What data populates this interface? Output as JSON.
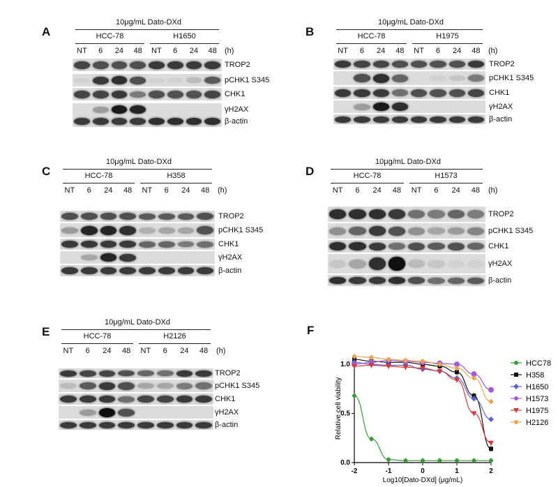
{
  "panels": [
    {
      "label": "A",
      "treatment": "10μg/mL Dato-DXd",
      "line1": "HCC-78",
      "line2": "H1650",
      "timepoints": [
        "NT",
        "6",
        "24",
        "48",
        "NT",
        "6",
        "24",
        "48"
      ],
      "unit": "(h)",
      "proteins": [
        "TROP2",
        "pCHK1 S345",
        "CHK1",
        "γH2AX",
        "β-actin"
      ]
    },
    {
      "label": "B",
      "treatment": "10μg/mL Dato-DXd",
      "line1": "HCC-78",
      "line2": "H1975",
      "timepoints": [
        "NT",
        "6",
        "24",
        "48",
        "NT",
        "6",
        "24",
        "48"
      ],
      "unit": "(h)",
      "proteins": [
        "TROP2",
        "pCHK1 S345",
        "CHK1",
        "γH2AX",
        "β-actin"
      ]
    },
    {
      "label": "C",
      "treatment": "10μg/mL Dato-DXd",
      "line1": "HCC-78",
      "line2": "H358",
      "timepoints": [
        "NT",
        "6",
        "24",
        "48",
        "NT",
        "6",
        "24",
        "48"
      ],
      "unit": "(h)",
      "proteins": [
        "TROP2",
        "pCHK1 S345",
        "CHK1",
        "γH2AX",
        "β-actin"
      ]
    },
    {
      "label": "D",
      "treatment": "10μg/mL Dato-DXd",
      "line1": "HCC-78",
      "line2": "H1573",
      "timepoints": [
        "NT",
        "6",
        "24",
        "48",
        "NT",
        "6",
        "24",
        "48"
      ],
      "unit": "(h)",
      "proteins": [
        "TROP2",
        "pCHK1 S345",
        "CHK1",
        "γH2AX",
        "β-actin"
      ]
    },
    {
      "label": "E",
      "treatment": "10μg/mL Dato-DXd",
      "line1": "HCC-78",
      "line2": "H2126",
      "timepoints": [
        "NT",
        "6",
        "24",
        "48",
        "NT",
        "6",
        "24",
        "48"
      ],
      "unit": "(h)",
      "proteins": [
        "TROP2",
        "pCHK1 S345",
        "CHK1",
        "γH2AX",
        "β-actin"
      ]
    }
  ],
  "panel_f_label": "F",
  "chart_data": {
    "type": "scatter",
    "xlabel": "Log10[Dato-DXd] (μg/mL)",
    "ylabel": "Relative cell viability",
    "xlim": [
      -2,
      2
    ],
    "ylim": [
      0,
      1.1
    ],
    "xticks": [
      -2,
      -1,
      0,
      1,
      2
    ],
    "yticks": [
      0.0,
      0.5,
      1.0
    ],
    "x": [
      -2,
      -1.5,
      -1,
      -0.5,
      0,
      0.5,
      1,
      1.5,
      2
    ],
    "series": [
      {
        "name": "HCC78",
        "color": "#3a9a3a",
        "marker": "circle",
        "values": [
          0.68,
          0.24,
          0.03,
          0.02,
          0.02,
          0.02,
          0.02,
          0.02,
          0.02
        ]
      },
      {
        "name": "H358",
        "color": "#111111",
        "marker": "square",
        "values": [
          1.05,
          1.03,
          1.02,
          1.02,
          1.0,
          0.98,
          0.92,
          0.68,
          0.14
        ]
      },
      {
        "name": "H1650",
        "color": "#5b63d6",
        "marker": "diamond",
        "values": [
          1.02,
          1.0,
          0.99,
          0.99,
          0.95,
          0.93,
          0.86,
          0.65,
          0.44
        ]
      },
      {
        "name": "H1573",
        "color": "#a35bd6",
        "marker": "circle",
        "values": [
          1.0,
          1.02,
          1.04,
          1.03,
          1.02,
          1.01,
          1.0,
          0.9,
          0.74
        ]
      },
      {
        "name": "H1975",
        "color": "#d63a3a",
        "marker": "triangle-down",
        "values": [
          0.98,
          0.99,
          0.98,
          0.97,
          0.96,
          0.93,
          0.84,
          0.5,
          0.2
        ]
      },
      {
        "name": "H2126",
        "color": "#e8a552",
        "marker": "circle",
        "values": [
          1.08,
          1.07,
          1.05,
          1.04,
          1.03,
          1.0,
          0.96,
          0.86,
          0.62
        ]
      }
    ]
  }
}
